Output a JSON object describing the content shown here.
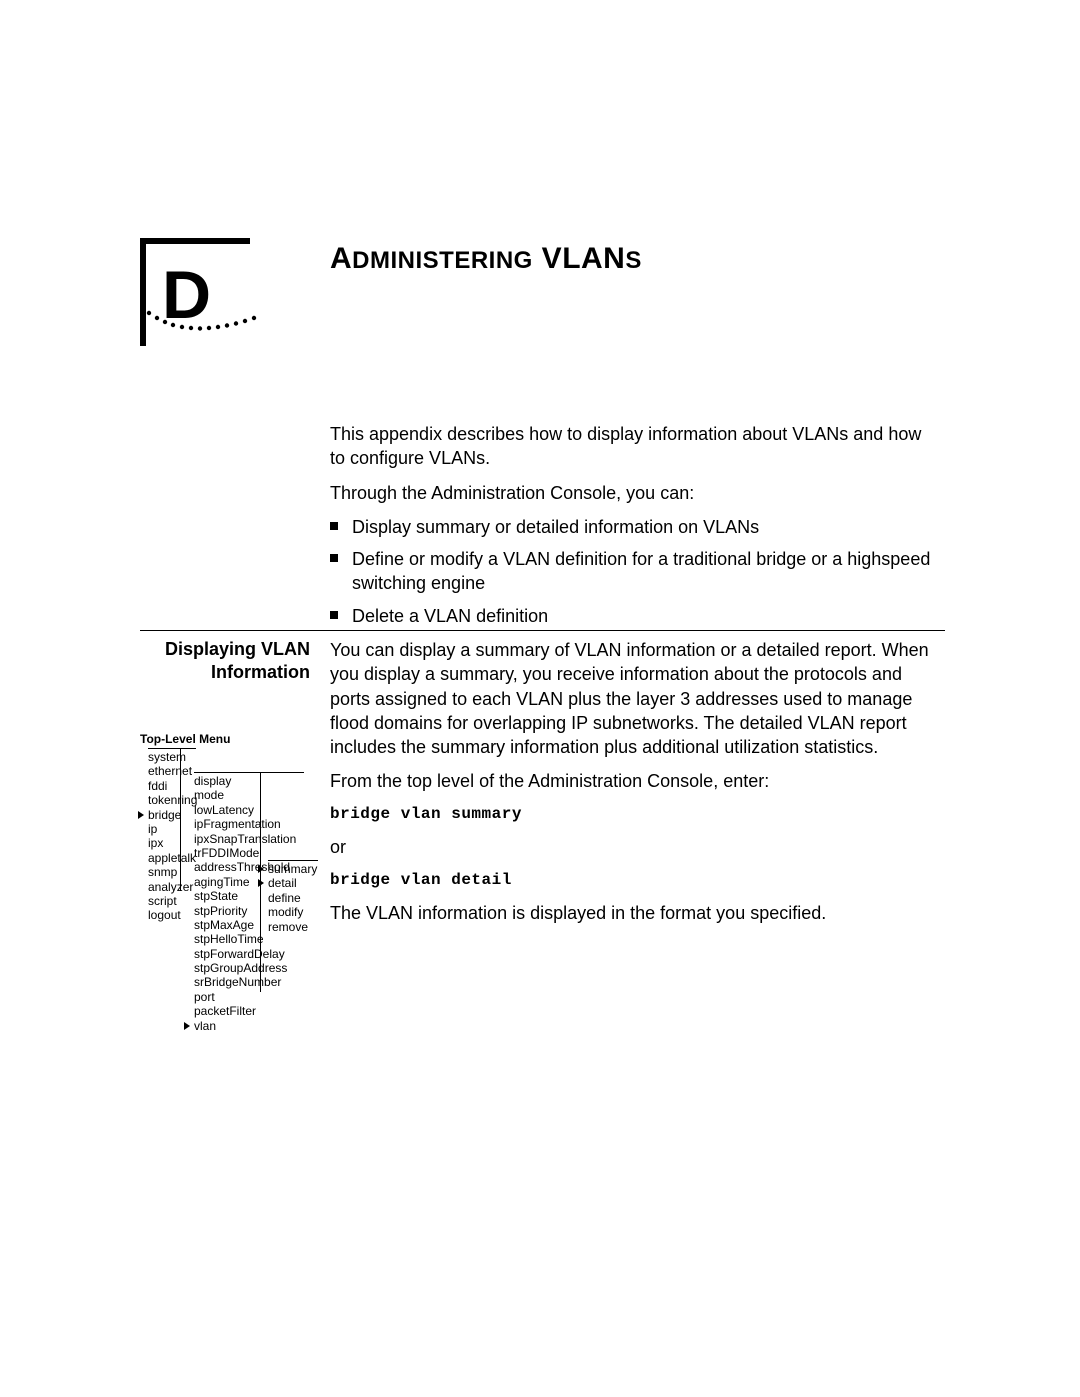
{
  "appendix": {
    "letter": "D",
    "title_word1": "A",
    "title_word1_sc": "DMINISTERING",
    "title_word2": " VLAN",
    "title_word2_sc": "S"
  },
  "intro": {
    "p1": "This appendix describes how to display information about VLANs and how to configure VLANs.",
    "p2": "Through the Administration Console, you can:",
    "bullets": [
      "Display summary or detailed information on VLANs",
      "Define or modify a VLAN definition for a traditional bridge or a highspeed switching engine",
      "Delete a VLAN definition"
    ]
  },
  "section": {
    "heading": "Displaying VLAN Information",
    "p1": "You can display a summary of VLAN information or a detailed report. When you display a summary, you receive information about the protocols and ports assigned to each VLAN plus the layer 3 addresses used to manage flood domains for overlapping IP subnetworks. The detailed VLAN report includes the summary information plus additional utilization statistics.",
    "p2": "From the top level of the Administration Console, enter:",
    "cmd1": "bridge vlan summary",
    "or": "or",
    "cmd2": "bridge vlan detail",
    "p3": "The VLAN information is displayed in the format you specified."
  },
  "menu": {
    "title": "Top-Level Menu",
    "col1": [
      "system",
      "ethernet",
      "fddi",
      "tokenring",
      "bridge",
      "ip",
      "ipx",
      "appletalk",
      "snmp",
      "analyzer",
      "script",
      "logout"
    ],
    "col1_ptr_index": 4,
    "col2": [
      "display",
      "mode",
      "lowLatency",
      "ipFragmentation",
      "ipxSnapTranslation",
      "trFDDIMode",
      "addressThreshold",
      "agingTime",
      "stpState",
      "stpPriority",
      "stpMaxAge",
      "stpHelloTime",
      "stpForwardDelay",
      "stpGroupAddress",
      "srBridgeNumber",
      "port",
      "packetFilter",
      "vlan"
    ],
    "col2_ptr_index": 17,
    "col3": [
      "summary",
      "detail",
      "define",
      "modify",
      "remove"
    ],
    "col3_ptr_indices": [
      0,
      1
    ]
  },
  "colors": {
    "text": "#000000",
    "background": "#ffffff"
  }
}
